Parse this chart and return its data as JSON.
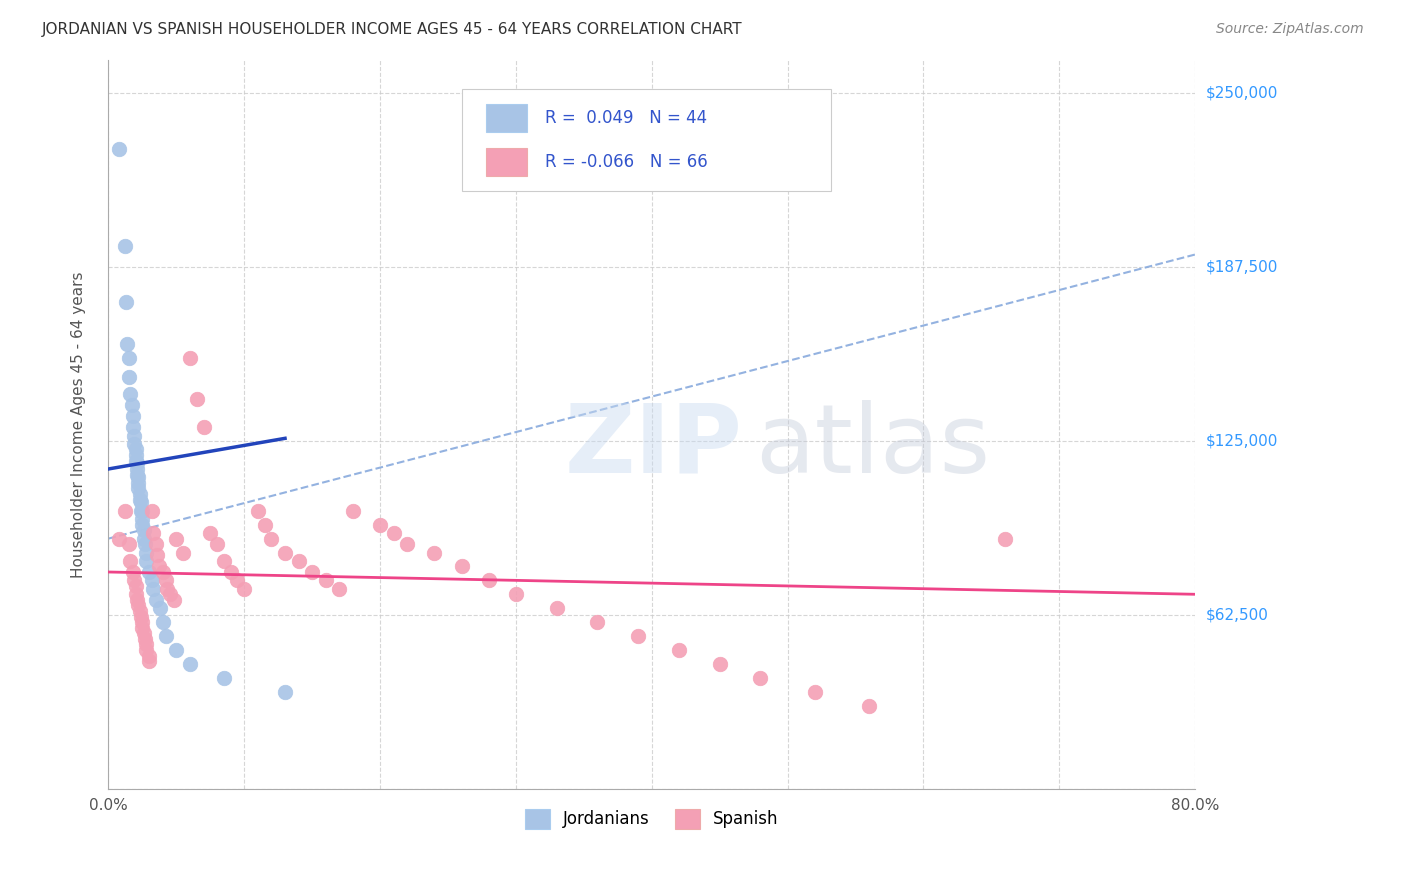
{
  "title": "JORDANIAN VS SPANISH HOUSEHOLDER INCOME AGES 45 - 64 YEARS CORRELATION CHART",
  "source": "Source: ZipAtlas.com",
  "ylabel": "Householder Income Ages 45 - 64 years",
  "xlim": [
    0.0,
    0.8
  ],
  "ylim": [
    0,
    262000
  ],
  "yticks": [
    0,
    62500,
    125000,
    187500,
    250000
  ],
  "ytick_labels": [
    "",
    "$62,500",
    "$125,000",
    "$187,500",
    "$250,000"
  ],
  "xticks": [
    0.0,
    0.1,
    0.2,
    0.3,
    0.4,
    0.5,
    0.6,
    0.7,
    0.8
  ],
  "xtick_labels": [
    "0.0%",
    "",
    "",
    "",
    "",
    "",
    "",
    "",
    "80.0%"
  ],
  "jordanian_color": "#a8c4e6",
  "spanish_color": "#f4a0b5",
  "jordanian_R": 0.049,
  "jordanian_N": 44,
  "spanish_R": -0.066,
  "spanish_N": 66,
  "legend_R_color": "#3355cc",
  "background_color": "#ffffff",
  "grid_color": "#cccccc",
  "jordanian_trend_color": "#2244bb",
  "jordanian_dash_color": "#88aadd",
  "spanish_trend_color": "#ee4488",
  "jordanian_x": [
    0.008,
    0.012,
    0.013,
    0.014,
    0.015,
    0.015,
    0.016,
    0.017,
    0.018,
    0.018,
    0.019,
    0.019,
    0.02,
    0.02,
    0.02,
    0.021,
    0.021,
    0.021,
    0.022,
    0.022,
    0.022,
    0.023,
    0.023,
    0.024,
    0.024,
    0.025,
    0.025,
    0.025,
    0.026,
    0.026,
    0.027,
    0.028,
    0.028,
    0.03,
    0.032,
    0.033,
    0.035,
    0.038,
    0.04,
    0.042,
    0.05,
    0.06,
    0.085,
    0.13
  ],
  "jordanian_y": [
    230000,
    195000,
    175000,
    160000,
    155000,
    148000,
    142000,
    138000,
    134000,
    130000,
    127000,
    124000,
    122000,
    120000,
    118000,
    117000,
    115000,
    113000,
    112000,
    110000,
    108000,
    106000,
    104000,
    103000,
    100000,
    100000,
    97000,
    95000,
    93000,
    90000,
    88000,
    85000,
    82000,
    78000,
    75000,
    72000,
    68000,
    65000,
    60000,
    55000,
    50000,
    45000,
    40000,
    35000
  ],
  "spanish_x": [
    0.008,
    0.012,
    0.015,
    0.016,
    0.018,
    0.019,
    0.02,
    0.02,
    0.021,
    0.022,
    0.023,
    0.024,
    0.025,
    0.025,
    0.026,
    0.027,
    0.028,
    0.028,
    0.03,
    0.03,
    0.032,
    0.033,
    0.035,
    0.036,
    0.037,
    0.04,
    0.042,
    0.043,
    0.045,
    0.048,
    0.05,
    0.055,
    0.06,
    0.065,
    0.07,
    0.075,
    0.08,
    0.085,
    0.09,
    0.095,
    0.1,
    0.11,
    0.115,
    0.12,
    0.13,
    0.14,
    0.15,
    0.16,
    0.17,
    0.18,
    0.2,
    0.21,
    0.22,
    0.24,
    0.26,
    0.28,
    0.3,
    0.33,
    0.36,
    0.39,
    0.42,
    0.45,
    0.48,
    0.52,
    0.56,
    0.66
  ],
  "spanish_y": [
    90000,
    100000,
    88000,
    82000,
    78000,
    75000,
    73000,
    70000,
    68000,
    66000,
    64000,
    62000,
    60000,
    58000,
    56000,
    54000,
    52000,
    50000,
    48000,
    46000,
    100000,
    92000,
    88000,
    84000,
    80000,
    78000,
    75000,
    72000,
    70000,
    68000,
    90000,
    85000,
    155000,
    140000,
    130000,
    92000,
    88000,
    82000,
    78000,
    75000,
    72000,
    100000,
    95000,
    90000,
    85000,
    82000,
    78000,
    75000,
    72000,
    100000,
    95000,
    92000,
    88000,
    85000,
    80000,
    75000,
    70000,
    65000,
    60000,
    55000,
    50000,
    45000,
    40000,
    35000,
    30000,
    90000
  ],
  "dashed_line_x0": 0.0,
  "dashed_line_y0": 90000,
  "dashed_line_x1": 0.8,
  "dashed_line_y1": 192000
}
